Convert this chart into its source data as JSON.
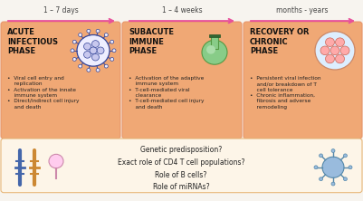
{
  "background_color": "#f7f4ef",
  "box_color": "#f0a875",
  "box_edge_color": "#e8956a",
  "bottom_box_color": "#fdf5e8",
  "bottom_edge_color": "#e8b87a",
  "arrow_color": "#e8509a",
  "time_labels": [
    "1 – 7 days",
    "1 – 4 weeks",
    "months - years"
  ],
  "phase_titles": [
    "ACUTE\nINFECTIOUS\nPHASE",
    "SUBACUTE\nIMMUNE\nPHASE",
    "RECOVERY OR\nCHRONIC\nPHASE"
  ],
  "bullet_texts": [
    "•  Viral cell entry and\n    replication\n•  Activation of the innate\n    immune system\n•  Direct/indirect cell injury\n    and death",
    "•  Activation of the adaptive\n    immune system\n•  T-cell-mediated viral\n    clearance\n•  T-cell-mediated cell injury\n    and death",
    "•  Persistent viral infection\n    and/or breakdown of T\n    cell tolerance\n•  Chronic inflammation,\n    fibrosis and adverse\n    remodeling"
  ],
  "bottom_text": "Genetic predisposition?\nExact role of CD4 T cell populations?\nRole of B cells?\nRole of miRNAs?",
  "virus_color_fill": "#eeeeff",
  "virus_color_edge": "#334499",
  "flask_color_fill": "#88cc88",
  "flask_color_edge": "#559944",
  "tissue_color_fill": "#ddeeff",
  "tissue_color_edge": "#cc8866",
  "cell_fill": "#ffaaaa",
  "cell_edge": "#cc6655"
}
